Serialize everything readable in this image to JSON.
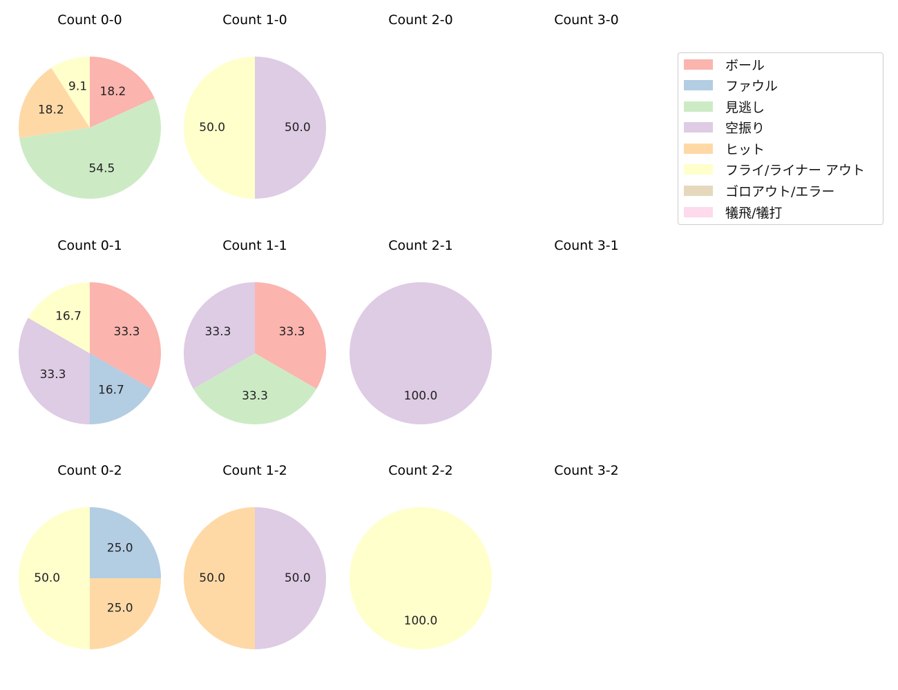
{
  "chart_data": {
    "type": "pie",
    "legend": {
      "position": "upper right",
      "entries": [
        {
          "label": "ボール",
          "color": "#fbb4ae"
        },
        {
          "label": "ファウル",
          "color": "#b3cde3"
        },
        {
          "label": "見逃し",
          "color": "#ccebc5"
        },
        {
          "label": "空振り",
          "color": "#decbe4"
        },
        {
          "label": "ヒット",
          "color": "#fed9a6"
        },
        {
          "label": "フライ/ライナー アウト",
          "color": "#ffffcc"
        },
        {
          "label": "ゴロアウト/エラー",
          "color": "#e5d8bd"
        },
        {
          "label": "犠飛/犠打",
          "color": "#fddaec"
        }
      ]
    },
    "charts": [
      {
        "title": "Count 0-0",
        "row": 0,
        "col": 0,
        "slices": [
          {
            "category": "ボール",
            "value": 18.2
          },
          {
            "category": "見逃し",
            "value": 54.5
          },
          {
            "category": "ヒット",
            "value": 18.2
          },
          {
            "category": "フライ/ライナー アウト",
            "value": 9.1
          }
        ]
      },
      {
        "title": "Count 1-0",
        "row": 0,
        "col": 1,
        "slices": [
          {
            "category": "空振り",
            "value": 50.0
          },
          {
            "category": "フライ/ライナー アウト",
            "value": 50.0
          }
        ]
      },
      {
        "title": "Count 2-0",
        "row": 0,
        "col": 2,
        "slices": []
      },
      {
        "title": "Count 3-0",
        "row": 0,
        "col": 3,
        "slices": []
      },
      {
        "title": "Count 0-1",
        "row": 1,
        "col": 0,
        "slices": [
          {
            "category": "ボール",
            "value": 33.3
          },
          {
            "category": "ファウル",
            "value": 16.7
          },
          {
            "category": "空振り",
            "value": 33.3
          },
          {
            "category": "フライ/ライナー アウト",
            "value": 16.7
          }
        ]
      },
      {
        "title": "Count 1-1",
        "row": 1,
        "col": 1,
        "slices": [
          {
            "category": "ボール",
            "value": 33.3
          },
          {
            "category": "見逃し",
            "value": 33.3
          },
          {
            "category": "空振り",
            "value": 33.3
          }
        ]
      },
      {
        "title": "Count 2-1",
        "row": 1,
        "col": 2,
        "slices": [
          {
            "category": "空振り",
            "value": 100.0
          }
        ]
      },
      {
        "title": "Count 3-1",
        "row": 1,
        "col": 3,
        "slices": []
      },
      {
        "title": "Count 0-2",
        "row": 2,
        "col": 0,
        "slices": [
          {
            "category": "ファウル",
            "value": 25.0
          },
          {
            "category": "ヒット",
            "value": 25.0
          },
          {
            "category": "フライ/ライナー アウト",
            "value": 50.0
          }
        ]
      },
      {
        "title": "Count 1-2",
        "row": 2,
        "col": 1,
        "slices": [
          {
            "category": "空振り",
            "value": 50.0
          },
          {
            "category": "ヒット",
            "value": 50.0
          }
        ]
      },
      {
        "title": "Count 2-2",
        "row": 2,
        "col": 2,
        "slices": [
          {
            "category": "フライ/ライナー アウト",
            "value": 100.0
          }
        ]
      },
      {
        "title": "Count 3-2",
        "row": 2,
        "col": 3,
        "slices": []
      }
    ]
  }
}
